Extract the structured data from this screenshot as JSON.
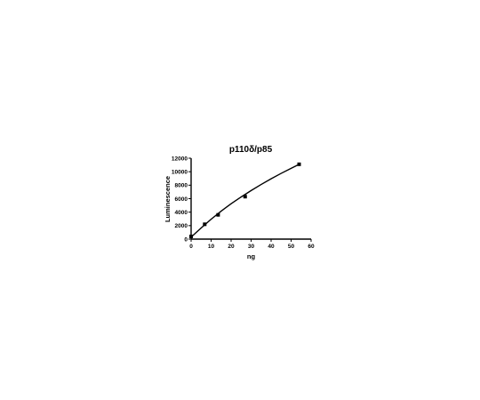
{
  "chart_data": {
    "type": "scatter",
    "title": "p110δ/p85",
    "xlabel": "ng",
    "ylabel": "Luminescence",
    "xlim": [
      0,
      60
    ],
    "ylim": [
      0,
      12000
    ],
    "x_ticks": [
      0,
      10,
      20,
      30,
      40,
      50,
      60
    ],
    "y_ticks": [
      0,
      2000,
      4000,
      6000,
      8000,
      10000,
      12000
    ],
    "grid": false,
    "legend": "none",
    "points": [
      {
        "x": 0,
        "y": 400
      },
      {
        "x": 6.8,
        "y": 2200
      },
      {
        "x": 13.5,
        "y": 3600
      },
      {
        "x": 27,
        "y": 6300
      },
      {
        "x": 54,
        "y": 11100
      }
    ],
    "fit_curve": {
      "type": "curve",
      "x": [
        0,
        5,
        10,
        15,
        20,
        25,
        30,
        35,
        40,
        45,
        50,
        54
      ],
      "y": [
        300,
        1650,
        2950,
        4150,
        5250,
        6250,
        7200,
        8100,
        8950,
        9750,
        10500,
        11100
      ]
    }
  }
}
